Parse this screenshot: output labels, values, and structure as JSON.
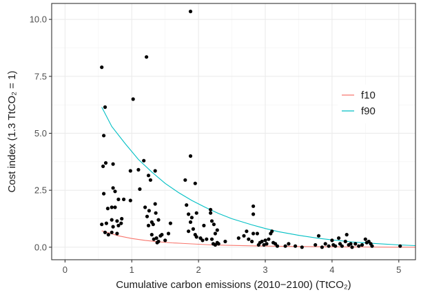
{
  "chart_data": {
    "type": "scatter",
    "xlabel": "Cumulative carbon emissions (2010−2100) (TtCO₂)",
    "ylabel": "Cost index (1.3 TtCO₂ = 1)",
    "xlim": [
      -0.2,
      5.25
    ],
    "ylim": [
      -0.55,
      10.7
    ],
    "x_ticks": [
      0,
      1,
      2,
      3,
      4,
      5
    ],
    "x_tick_labels": [
      "0",
      "1",
      "2",
      "3",
      "4",
      "5"
    ],
    "y_ticks": [
      0.0,
      2.5,
      5.0,
      7.5,
      10.0
    ],
    "y_tick_labels": [
      "0.0",
      "2.5",
      "5.0",
      "7.5",
      "10.0"
    ],
    "grid": true,
    "legend_position": "right",
    "point_color": "#000000",
    "points": [
      [
        0.55,
        7.9
      ],
      [
        0.6,
        6.15
      ],
      [
        0.58,
        4.9
      ],
      [
        0.57,
        3.55
      ],
      [
        0.61,
        3.7
      ],
      [
        0.58,
        2.35
      ],
      [
        0.64,
        1.7
      ],
      [
        0.55,
        1.0
      ],
      [
        0.6,
        0.65
      ],
      [
        0.62,
        1.05
      ],
      [
        0.65,
        0.55
      ],
      [
        0.72,
        3.65
      ],
      [
        0.72,
        2.6
      ],
      [
        0.75,
        2.45
      ],
      [
        0.7,
        1.75
      ],
      [
        0.75,
        1.75
      ],
      [
        0.8,
        2.1
      ],
      [
        0.7,
        1.2
      ],
      [
        0.72,
        0.9
      ],
      [
        0.78,
        1.15
      ],
      [
        0.85,
        1.25
      ],
      [
        0.88,
        2.1
      ],
      [
        0.8,
        0.95
      ],
      [
        0.84,
        1.05
      ],
      [
        0.7,
        0.65
      ],
      [
        0.78,
        0.6
      ],
      [
        1.02,
        6.5
      ],
      [
        0.98,
        3.35
      ],
      [
        0.98,
        2.05
      ],
      [
        1.1,
        3.4
      ],
      [
        1.12,
        2.55
      ],
      [
        1.22,
        8.35
      ],
      [
        1.25,
        3.15
      ],
      [
        1.28,
        2.95
      ],
      [
        1.18,
        3.8
      ],
      [
        1.35,
        3.35
      ],
      [
        1.2,
        1.75
      ],
      [
        1.23,
        1.35
      ],
      [
        1.26,
        1.6
      ],
      [
        1.3,
        1.1
      ],
      [
        1.32,
        1.0
      ],
      [
        1.35,
        1.9
      ],
      [
        1.36,
        1.5
      ],
      [
        1.4,
        1.2
      ],
      [
        1.25,
        0.95
      ],
      [
        1.3,
        0.55
      ],
      [
        1.33,
        0.35
      ],
      [
        1.37,
        0.4
      ],
      [
        1.4,
        0.25
      ],
      [
        1.43,
        0.5
      ],
      [
        1.45,
        0.55
      ],
      [
        1.38,
        0.2
      ],
      [
        1.5,
        0.3
      ],
      [
        1.55,
        0.6
      ],
      [
        1.58,
        1.05
      ],
      [
        1.88,
        10.35
      ],
      [
        1.88,
        4.0
      ],
      [
        1.8,
        2.95
      ],
      [
        1.95,
        2.8
      ],
      [
        1.82,
        1.85
      ],
      [
        1.85,
        1.45
      ],
      [
        1.9,
        1.3
      ],
      [
        1.97,
        1.5
      ],
      [
        1.88,
        1.1
      ],
      [
        1.92,
        0.8
      ],
      [
        1.95,
        0.55
      ],
      [
        1.85,
        0.7
      ],
      [
        1.97,
        0.45
      ],
      [
        2.03,
        0.4
      ],
      [
        2.06,
        0.3
      ],
      [
        2.08,
        0.95
      ],
      [
        2.12,
        0.35
      ],
      [
        2.18,
        1.5
      ],
      [
        2.18,
        1.65
      ],
      [
        2.2,
        1.15
      ],
      [
        2.23,
        1.0
      ],
      [
        2.25,
        0.6
      ],
      [
        2.2,
        0.35
      ],
      [
        2.22,
        0.15
      ],
      [
        2.28,
        0.75
      ],
      [
        2.28,
        0.2
      ],
      [
        2.3,
        0.15
      ],
      [
        2.25,
        0.1
      ],
      [
        2.4,
        0.25
      ],
      [
        2.6,
        0.4
      ],
      [
        2.68,
        0.5
      ],
      [
        2.72,
        0.7
      ],
      [
        2.75,
        0.35
      ],
      [
        2.8,
        0.25
      ],
      [
        2.82,
        1.8
      ],
      [
        2.82,
        1.45
      ],
      [
        2.82,
        0.6
      ],
      [
        2.88,
        0.6
      ],
      [
        2.9,
        0.1
      ],
      [
        2.92,
        0.2
      ],
      [
        2.95,
        0.25
      ],
      [
        2.98,
        0.1
      ],
      [
        3.0,
        0.3
      ],
      [
        3.02,
        0.15
      ],
      [
        3.05,
        0.35
      ],
      [
        3.08,
        0.6
      ],
      [
        3.1,
        0.7
      ],
      [
        3.12,
        0.2
      ],
      [
        3.15,
        0.15
      ],
      [
        3.18,
        0.05
      ],
      [
        3.3,
        0.05
      ],
      [
        3.35,
        0.15
      ],
      [
        3.45,
        0.05
      ],
      [
        3.55,
        0.0
      ],
      [
        3.75,
        0.1
      ],
      [
        3.8,
        0.5
      ],
      [
        3.85,
        0.0
      ],
      [
        3.9,
        0.15
      ],
      [
        3.95,
        0.05
      ],
      [
        4.0,
        0.3
      ],
      [
        4.02,
        0.1
      ],
      [
        4.05,
        0.05
      ],
      [
        4.1,
        0.4
      ],
      [
        4.12,
        0.15
      ],
      [
        4.15,
        0.05
      ],
      [
        4.2,
        0.25
      ],
      [
        4.22,
        0.55
      ],
      [
        4.25,
        0.1
      ],
      [
        4.28,
        0.15
      ],
      [
        4.3,
        0.0
      ],
      [
        4.35,
        0.15
      ],
      [
        4.4,
        0.05
      ],
      [
        4.45,
        0.1
      ],
      [
        4.5,
        0.35
      ],
      [
        4.52,
        0.2
      ],
      [
        4.55,
        0.25
      ],
      [
        4.58,
        0.15
      ],
      [
        4.6,
        0.05
      ],
      [
        5.02,
        0.05
      ]
    ],
    "series": [
      {
        "name": "f10",
        "color": "#f8766d",
        "x": [
          0.55,
          0.8,
          1.0,
          1.2,
          1.4,
          1.6,
          1.8,
          2.0,
          2.2,
          2.5,
          2.8,
          3.0,
          3.5,
          4.0,
          4.5,
          5.0,
          5.25
        ],
        "y": [
          0.72,
          0.5,
          0.38,
          0.3,
          0.24,
          0.19,
          0.16,
          0.13,
          0.1,
          0.08,
          0.06,
          0.05,
          0.03,
          0.02,
          0.01,
          0.0,
          0.0
        ]
      },
      {
        "name": "f90",
        "color": "#00bfc4",
        "x": [
          0.55,
          0.7,
          0.9,
          1.1,
          1.3,
          1.5,
          1.7,
          1.9,
          2.1,
          2.3,
          2.5,
          2.8,
          3.0,
          3.2,
          3.5,
          3.8,
          4.0,
          4.3,
          4.6,
          5.0,
          5.25
        ],
        "y": [
          6.15,
          5.3,
          4.55,
          3.85,
          3.3,
          2.8,
          2.4,
          2.05,
          1.75,
          1.48,
          1.25,
          0.98,
          0.82,
          0.68,
          0.52,
          0.39,
          0.32,
          0.23,
          0.17,
          0.1,
          0.07
        ]
      }
    ]
  }
}
